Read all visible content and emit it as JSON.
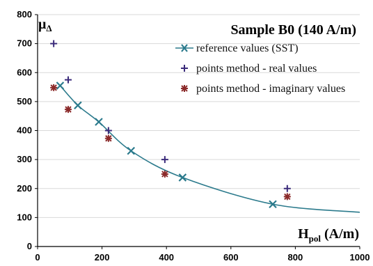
{
  "chart_data": {
    "type": "line",
    "title": "Sample B0 (140 A/m)",
    "xlabel": {
      "main": "H",
      "sub": "pol",
      "unit": " (A/m)"
    },
    "ylabel": {
      "main": "μ",
      "sub": "Δ"
    },
    "xlim": [
      0,
      1000
    ],
    "ylim": [
      0,
      800
    ],
    "x_ticks": [
      0,
      200,
      400,
      600,
      800,
      1000
    ],
    "y_ticks": [
      0,
      100,
      200,
      300,
      400,
      500,
      600,
      700,
      800
    ],
    "grid": "horizontal",
    "legend_position": "top-right",
    "series": [
      {
        "name": "reference values (SST)",
        "style": "line-with-x-markers",
        "color": "#2b7a8c",
        "points": [
          [
            70,
            555
          ],
          [
            125,
            487
          ],
          [
            190,
            430
          ],
          [
            290,
            330
          ],
          [
            450,
            238
          ],
          [
            730,
            146
          ]
        ],
        "curve_end": [
          1000,
          118
        ]
      },
      {
        "name": "points method - real values",
        "style": "plus-markers",
        "color": "#3a2a7a",
        "points": [
          [
            50,
            700
          ],
          [
            95,
            575
          ],
          [
            220,
            400
          ],
          [
            395,
            300
          ],
          [
            775,
            200
          ]
        ]
      },
      {
        "name": "points method - imaginary values",
        "style": "star-markers",
        "color": "#8b2a2a",
        "points": [
          [
            50,
            548
          ],
          [
            95,
            473
          ],
          [
            220,
            373
          ],
          [
            395,
            250
          ],
          [
            775,
            172
          ]
        ]
      }
    ]
  }
}
